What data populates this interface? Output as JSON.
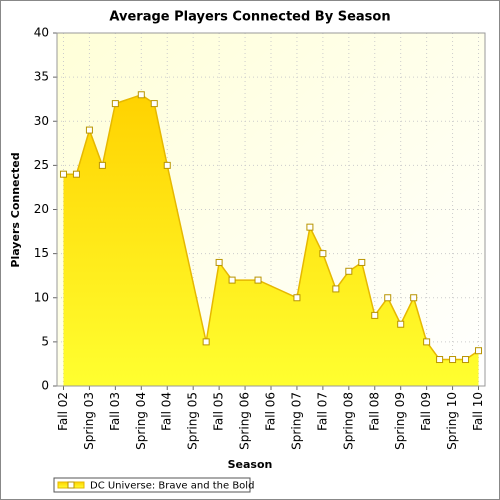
{
  "chart_data": {
    "type": "area",
    "title": "Average Players Connected By Season",
    "x_label": "Season",
    "y_label": "Players Connected",
    "categories": [
      "Fall 02",
      null,
      "Spring 03",
      null,
      "Fall 03",
      null,
      "Spring 04",
      null,
      "Fall 04",
      null,
      "Spring 05",
      null,
      "Fall 05",
      null,
      "Spring 06",
      null,
      "Fall 06",
      null,
      "Spring 07",
      null,
      "Fall 07",
      null,
      "Spring 08",
      null,
      "Fall 08",
      null,
      "Spring 09",
      null,
      "Fall 09",
      null,
      "Spring 10",
      null,
      "Fall 10"
    ],
    "series": [
      {
        "name": "DC Universe: Brave and the Bold",
        "color": "#e6b800",
        "values": [
          24,
          24,
          29,
          25,
          32,
          null,
          33,
          32,
          25,
          null,
          null,
          5,
          14,
          12,
          null,
          12,
          null,
          null,
          10,
          18,
          15,
          11,
          13,
          14,
          8,
          10,
          7,
          10,
          5,
          3,
          3,
          3,
          4
        ]
      }
    ],
    "span_gaps": true,
    "ylim": [
      0,
      40
    ],
    "yticks": [
      0,
      5,
      10,
      15,
      20,
      25,
      30,
      35,
      40
    ],
    "grid": true,
    "legend": "bottom-left"
  }
}
